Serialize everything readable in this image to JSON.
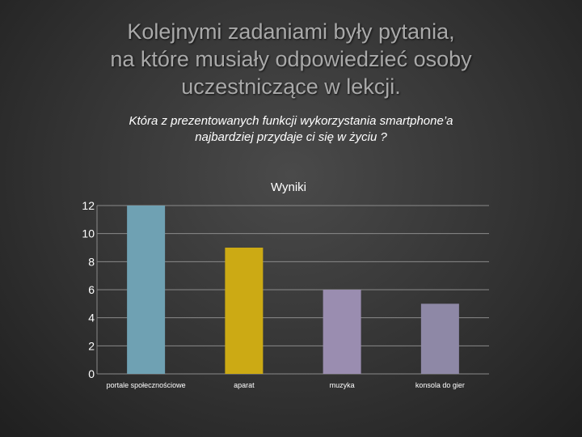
{
  "slide": {
    "title_lines": [
      "Kolejnymi zadaniami były pytania,",
      "na które musiały odpowiedzieć osoby",
      "uczestniczące  w lekcji."
    ],
    "question_lines": [
      "Która z prezentowanych funkcji wykorzystania smartphone’a",
      "najbardziej przydaje ci się w życiu ?"
    ]
  },
  "chart_data": {
    "type": "bar",
    "title": "Wyniki",
    "categories": [
      "portale społecznościowe",
      "aparat",
      "muzyka",
      "konsola do gier"
    ],
    "values": [
      12,
      9,
      6,
      5
    ],
    "colors": [
      "#6fa1b3",
      "#ccaa14",
      "#9a8db0",
      "#8e88a6"
    ],
    "ylim": [
      0,
      12
    ],
    "yticks": [
      0,
      2,
      4,
      6,
      8,
      10,
      12
    ],
    "grid": true,
    "legend": "none",
    "xlabel": "",
    "ylabel": ""
  }
}
